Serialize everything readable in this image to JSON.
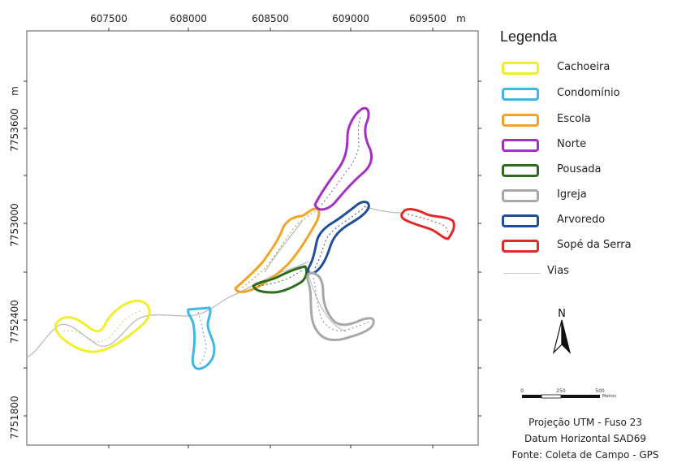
{
  "map": {
    "x_ticks": [
      "607500",
      "608000",
      "608500",
      "609000",
      "609500"
    ],
    "x_unit": "m",
    "y_ticks": [
      "7753600",
      "7753000",
      "7752400",
      "7751800"
    ],
    "y_unit": "m"
  },
  "legend": {
    "title": "Legenda",
    "items": [
      {
        "label": "Cachoeira",
        "color": "#f2ef2e"
      },
      {
        "label": "Condomínio",
        "color": "#3fb6e6"
      },
      {
        "label": "Escola",
        "color": "#f0a428"
      },
      {
        "label": "Norte",
        "color": "#a42fc4"
      },
      {
        "label": "Pousada",
        "color": "#2d6b1e"
      },
      {
        "label": "Igreja",
        "color": "#a8a8a8"
      },
      {
        "label": "Arvoredo",
        "color": "#1f4f9a"
      },
      {
        "label": "Sopé da Serra",
        "color": "#e02a2a"
      }
    ],
    "vias_label": "Vias"
  },
  "north": {
    "letter": "N"
  },
  "scale": {
    "labels": [
      "0",
      "250",
      "500"
    ],
    "unit": "Metros"
  },
  "credits": {
    "line1": "Projeção UTM - Fuso 23",
    "line2": "Datum Horizontal SAD69",
    "line3": "Fonte: Coleta de Campo - GPS"
  }
}
